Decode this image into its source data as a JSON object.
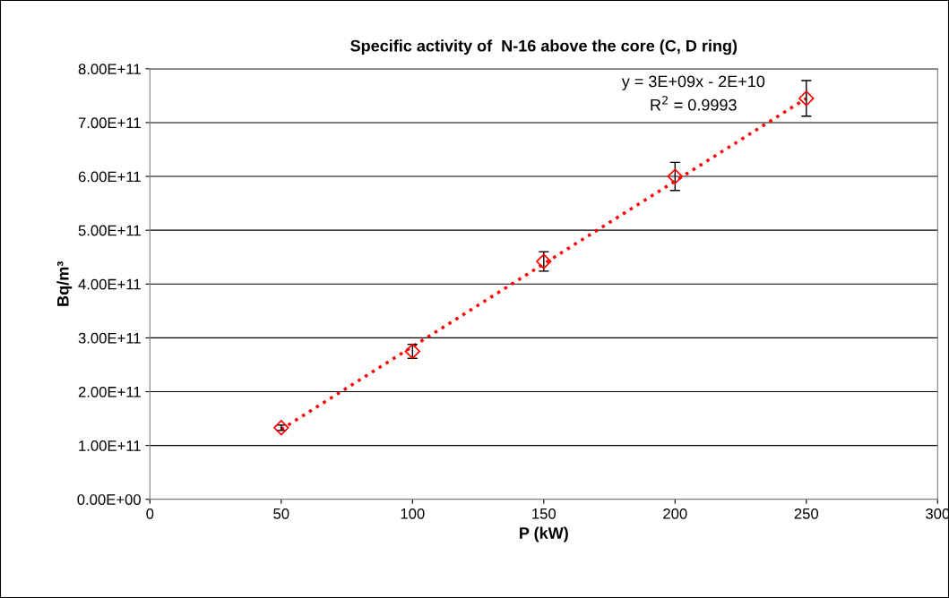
{
  "chart_data": {
    "type": "scatter",
    "title": "Specific activity of  N-16 above the core (C, D ring)",
    "xlabel": "P (kW)",
    "ylabel": "Bq/m³",
    "x": [
      50,
      100,
      150,
      200,
      250
    ],
    "series": [
      {
        "color": "#ff0000",
        "marker": "diamond",
        "values": [
          133000000000.0,
          275000000000.0,
          442000000000.0,
          600000000000.0,
          745000000000.0
        ],
        "errors": [
          5000000000.0,
          13000000000.0,
          18000000000.0,
          26000000000.0,
          33000000000.0
        ]
      },
      {
        "type": "line",
        "color": "#ff0000",
        "line_style": "dotted",
        "marker": "none",
        "x": [
          50,
          250
        ],
        "values": [
          130000000000.0,
          745000000000.0
        ]
      }
    ],
    "annotations": [
      "y = 3E+09x - 2E+10",
      "R$^{2}$ = 0.9993"
    ],
    "xlim": [
      0,
      300
    ],
    "xticks": [
      0,
      50,
      100,
      150,
      200,
      250,
      300
    ],
    "ylim": [
      0,
      800000000000.0
    ],
    "yticks": [
      {
        "value": 0,
        "label": "0.00E+00"
      },
      {
        "value": 100000000000.0,
        "label": "1.00E+11"
      },
      {
        "value": 200000000000.0,
        "label": "2.00E+11"
      },
      {
        "value": 300000000000.0,
        "label": "3.00E+11"
      },
      {
        "value": 400000000000.0,
        "label": "4.00E+11"
      },
      {
        "value": 500000000000.0,
        "label": "5.00E+11"
      },
      {
        "value": 600000000000.0,
        "label": "6.00E+11"
      },
      {
        "value": 700000000000.0,
        "label": "7.00E+11"
      },
      {
        "value": 800000000000.0,
        "label": "8.00E+11"
      }
    ],
    "grid": "y"
  }
}
